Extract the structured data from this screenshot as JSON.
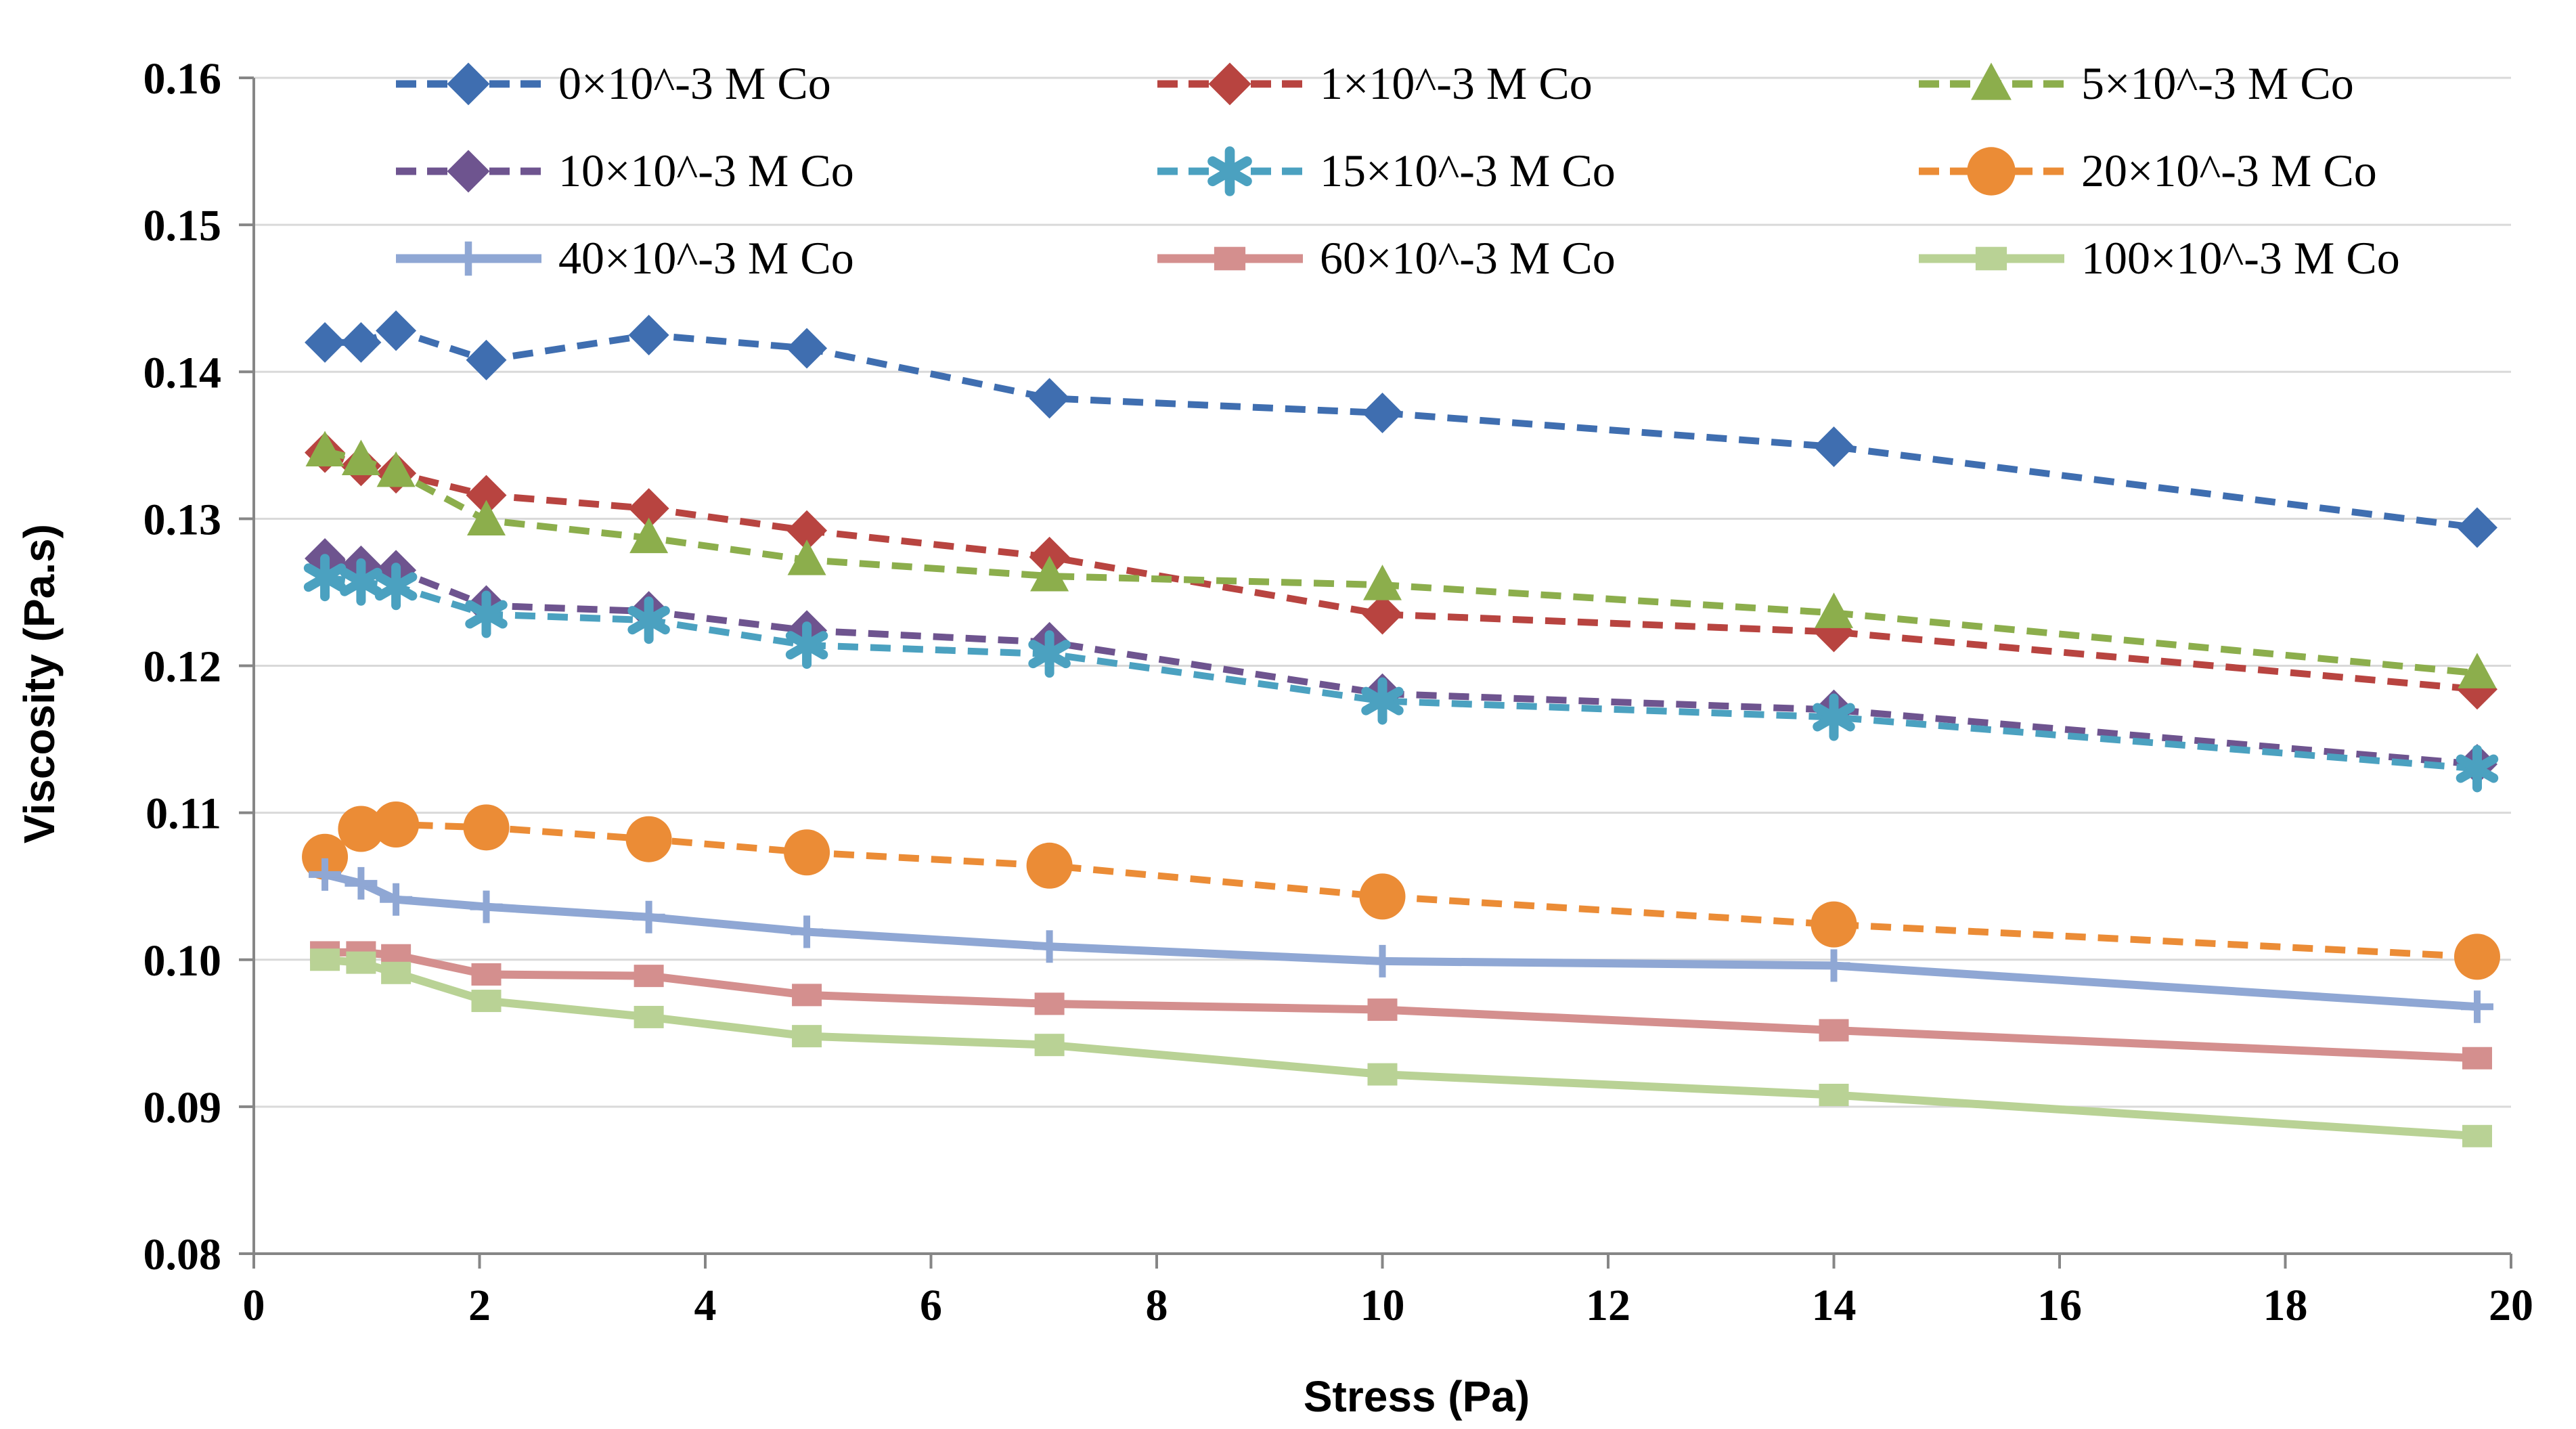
{
  "chart_data": {
    "type": "line",
    "title": "",
    "xlabel": "Stress (Pa)",
    "ylabel": "Viscosity (Pa.s)",
    "xlim": [
      0,
      20
    ],
    "ylim": [
      0.08,
      0.16
    ],
    "x_ticks": [
      0,
      2,
      4,
      6,
      8,
      10,
      12,
      14,
      16,
      18,
      20
    ],
    "x_tick_labels": [
      "0",
      "2",
      "4",
      "6",
      "8",
      "10",
      "12",
      "14",
      "16",
      "18",
      "20"
    ],
    "y_ticks": [
      0.08,
      0.09,
      0.1,
      0.11,
      0.12,
      0.13,
      0.14,
      0.15,
      0.16
    ],
    "y_tick_labels": [
      "0.08",
      "0.09",
      "0.10",
      "0.11",
      "0.12",
      "0.13",
      "0.14",
      "0.15",
      "0.16"
    ],
    "grid": true,
    "legend_position": "top",
    "x": [
      0.63,
      0.95,
      1.26,
      2.06,
      3.5,
      4.9,
      7.05,
      10.0,
      14.0,
      19.7
    ],
    "series": [
      {
        "name": "0×10^-3 M Co",
        "color": "#3F6EB0",
        "dash": true,
        "marker": "diamond",
        "values": [
          0.142,
          0.142,
          0.1428,
          0.1408,
          0.1425,
          0.1416,
          0.1382,
          0.1372,
          0.1349,
          0.1294
        ]
      },
      {
        "name": "1×10^-3 M Co",
        "color": "#B84440",
        "dash": true,
        "marker": "diamond",
        "values": [
          0.1345,
          0.1336,
          0.1331,
          0.1316,
          0.1307,
          0.1292,
          0.1274,
          0.1235,
          0.1223,
          0.1184
        ]
      },
      {
        "name": "5×10^-3 M Co",
        "color": "#8CAE4C",
        "dash": true,
        "marker": "triangle",
        "values": [
          0.1346,
          0.134,
          0.1332,
          0.1299,
          0.1287,
          0.1272,
          0.1261,
          0.1255,
          0.1236,
          0.1195
        ]
      },
      {
        "name": "10×10^-3 M Co",
        "color": "#6E548F",
        "dash": true,
        "marker": "diamond",
        "values": [
          0.1273,
          0.1268,
          0.1265,
          0.1241,
          0.1237,
          0.1224,
          0.1216,
          0.1181,
          0.117,
          0.1133
        ]
      },
      {
        "name": "15×10^-3 M Co",
        "color": "#4BA1C0",
        "dash": true,
        "marker": "star",
        "values": [
          0.126,
          0.1257,
          0.1254,
          0.1235,
          0.1231,
          0.1214,
          0.1208,
          0.1176,
          0.1165,
          0.113
        ]
      },
      {
        "name": "20×10^-3 M Co",
        "color": "#EB8C36",
        "dash": true,
        "marker": "circle",
        "values": [
          0.107,
          0.1089,
          0.1092,
          0.109,
          0.1082,
          0.1073,
          0.1064,
          0.1043,
          0.1024,
          0.1002
        ]
      },
      {
        "name": "40×10^-3 M Co",
        "color": "#8FA7D4",
        "dash": false,
        "marker": "plus",
        "values": [
          0.1058,
          0.1052,
          0.1041,
          0.1036,
          0.1029,
          0.1019,
          0.1009,
          0.0999,
          0.0996,
          0.0968
        ]
      },
      {
        "name": "60×10^-3 M Co",
        "color": "#D48F8E",
        "dash": false,
        "marker": "square",
        "values": [
          0.1005,
          0.1005,
          0.1003,
          0.099,
          0.0989,
          0.0976,
          0.097,
          0.0966,
          0.0952,
          0.0933
        ]
      },
      {
        "name": "100×10^-3 M Co",
        "color": "#B9D295",
        "dash": false,
        "marker": "square",
        "values": [
          0.1,
          0.0998,
          0.0991,
          0.0972,
          0.0961,
          0.0948,
          0.0942,
          0.0922,
          0.0908,
          0.088
        ]
      }
    ]
  }
}
